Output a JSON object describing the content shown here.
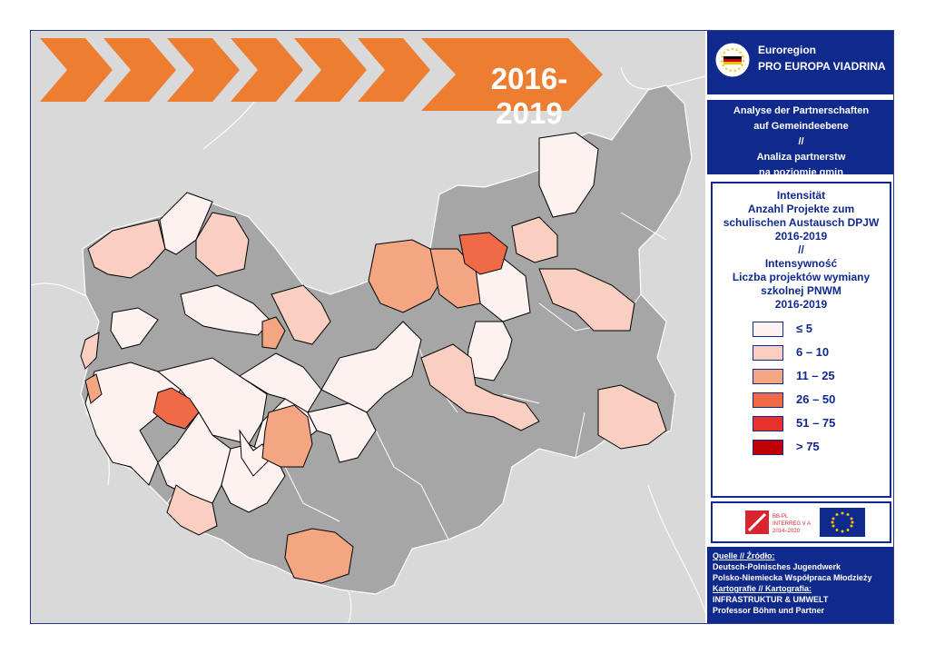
{
  "map": {
    "year_label": "2016-2019",
    "arrow_color": "#ed7d31",
    "colors": {
      "background": "#d9d9d9",
      "no_data": "#a6a6a6",
      "class1": "#fdf2f0",
      "class2": "#f8cfc0",
      "class3": "#f4a582",
      "class4": "#f06a48",
      "class5": "#e8312a",
      "class6": "#c00000"
    }
  },
  "header": {
    "region_line1": "Euroregion",
    "region_line2": "PRO EUROPA VIADRINA",
    "logo_icon": "euroregion-logo-icon"
  },
  "analysis": {
    "line1": "Analyse der Partnerschaften",
    "line2": "auf Gemeindeebene",
    "line3": "//",
    "line4": "Analiza partnerstw",
    "line5": "na poziomie gmin"
  },
  "legend": {
    "title_lines": [
      "Intensität",
      "Anzahl Projekte zum",
      "schulischen Austausch DPJW",
      "2016-2019",
      "//",
      "Intensywność",
      "Liczba projektów  wymiany",
      "szkolnej PNWM",
      "2016-2019"
    ],
    "classes": [
      {
        "label": "≤ 5",
        "color": "#fdf2f0"
      },
      {
        "label": "6 – 10",
        "color": "#f8cfc0"
      },
      {
        "label": "11 – 25",
        "color": "#f4a582"
      },
      {
        "label": "26 – 50",
        "color": "#f06a48"
      },
      {
        "label": "51 – 75",
        "color": "#e8312a"
      },
      {
        "label": "> 75",
        "color": "#c00000"
      }
    ]
  },
  "logos": {
    "interreg_line1": "BB-PL",
    "interreg_line2": "INTERREG V A",
    "interreg_line3": "2014–2020",
    "eu_flag_icon": "eu-flag-icon"
  },
  "source": {
    "source_label": "Quelle // Źródło:",
    "source_line1": "Deutsch-Polnisches Jugendwerk",
    "source_line2": "Polsko-Niemiecka Współpraca Młodzieży",
    "carto_label": "Kartografie // Kartografia:",
    "carto_line1": "INFRASTRUKTUR & UMWELT",
    "carto_line2": "Professor Böhm und Partner"
  }
}
